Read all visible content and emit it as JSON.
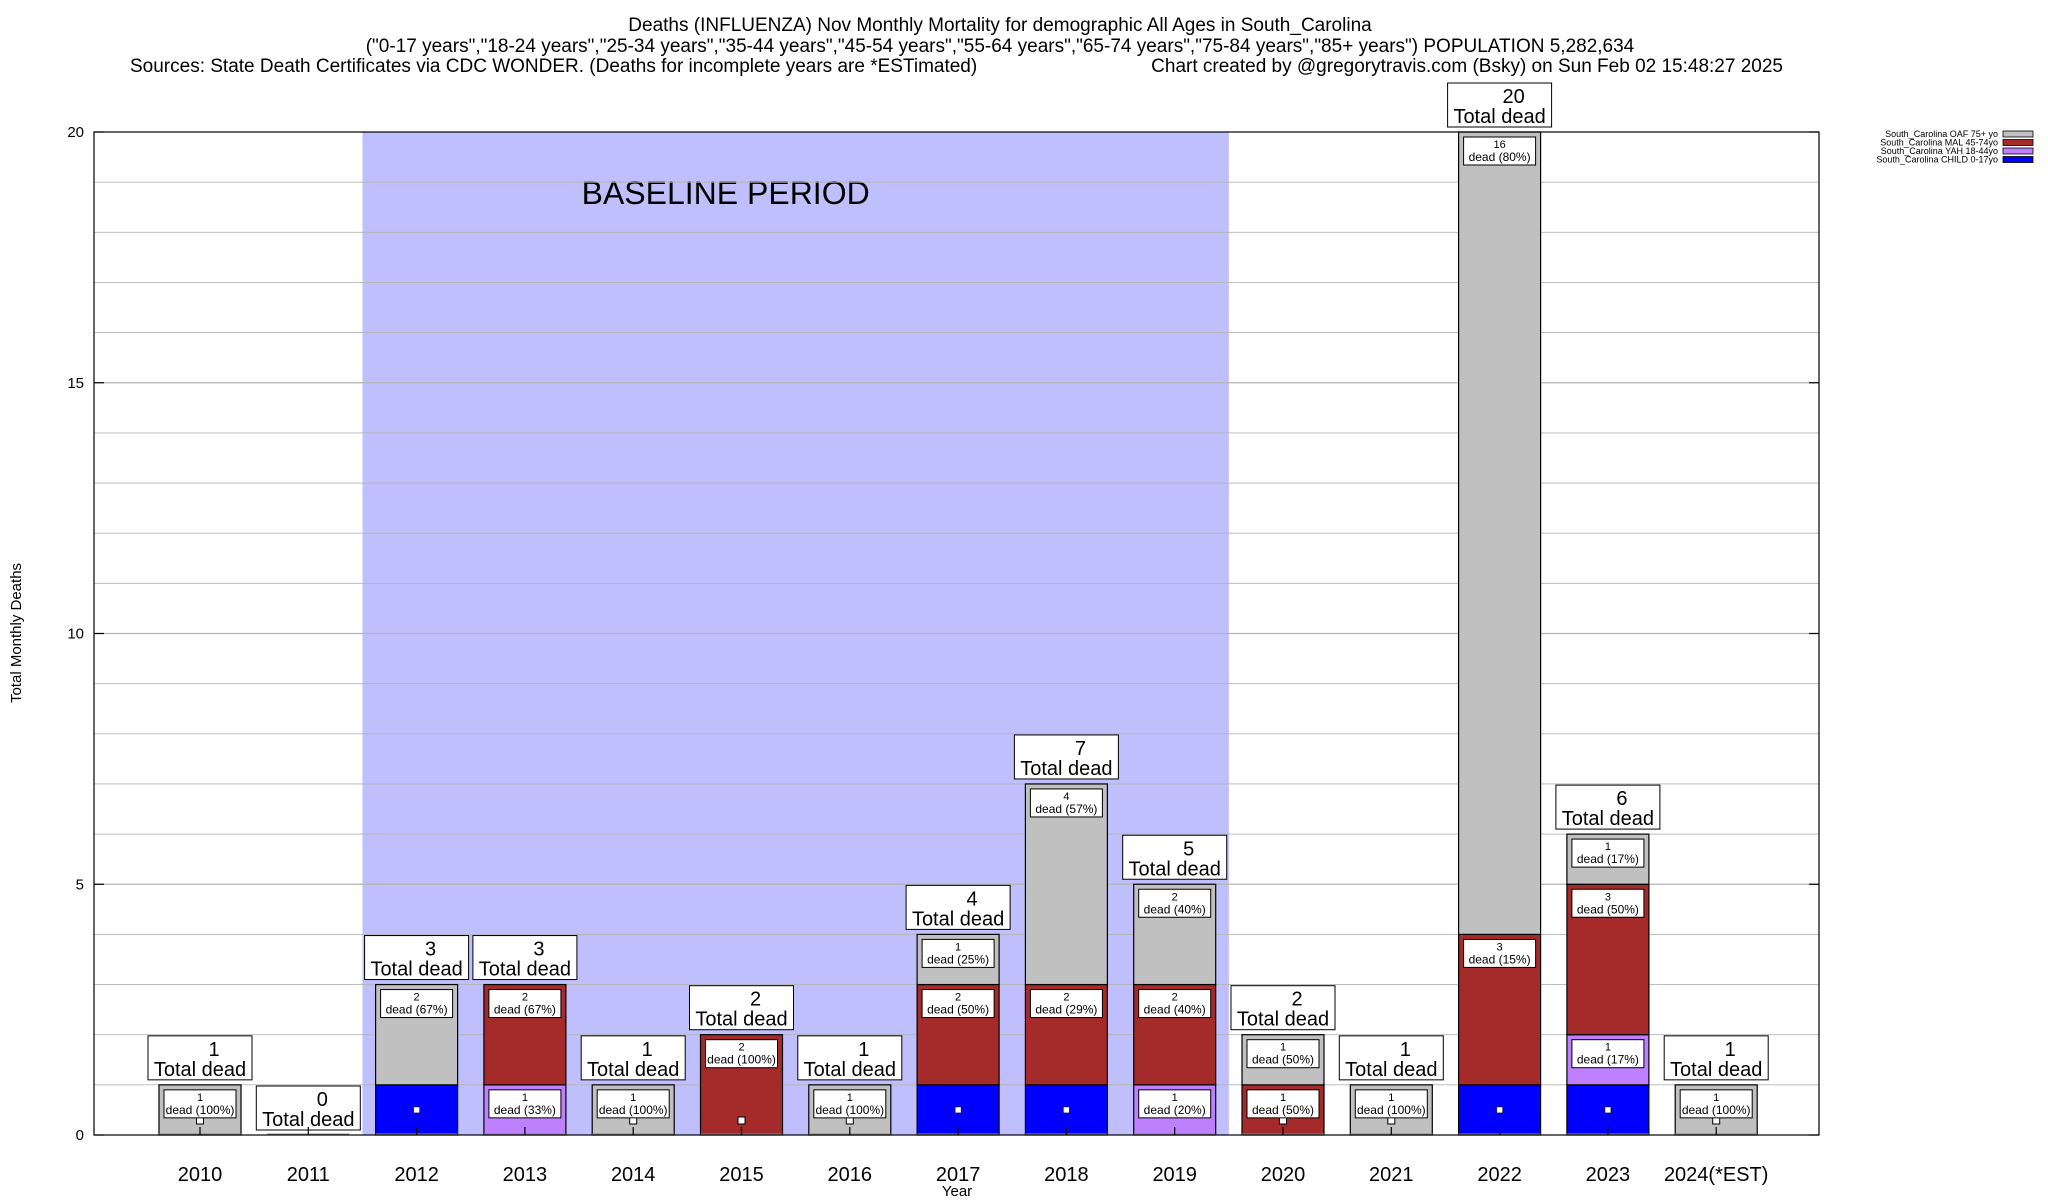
{
  "chart_data": {
    "type": "bar",
    "stacked": true,
    "title_lines": [
      "Deaths (INFLUENZA) Nov Monthly Mortality for demographic All Ages in South_Carolina",
      "(\"0-17 years\",\"18-24 years\",\"25-34 years\",\"35-44 years\",\"45-54 years\",\"55-64 years\",\"65-74 years\",\"75-84 years\",\"85+ years\") POPULATION 5,282,634"
    ],
    "sources_text": "Sources: State Death Certificates via CDC WONDER. (Deaths for incomplete years are *ESTimated)",
    "credit_text": "Chart created by @gregorytravis.com (Bsky) on Sun Feb 02 15:48:27 2025",
    "xlabel": "Year",
    "ylabel": "Total Monthly Deaths",
    "ylim": [
      0,
      20
    ],
    "y_ticks": [
      0,
      5,
      10,
      15,
      20
    ],
    "grid": true,
    "categories": [
      "2010",
      "2011",
      "2012",
      "2013",
      "2014",
      "2015",
      "2016",
      "2017",
      "2018",
      "2019",
      "2020",
      "2021",
      "2022",
      "2023",
      "2024(*EST)"
    ],
    "baseline_period": {
      "label": "BASELINE PERIOD",
      "from": "2012",
      "to": "2019",
      "color": "#bfbffd"
    },
    "total_label": "Total dead",
    "legend_position": "top-right",
    "series": [
      {
        "name": "South_Carolina CHILD 0-17yo",
        "color": "#0000ff",
        "values": [
          0,
          0,
          1,
          0,
          0,
          0,
          0,
          1,
          1,
          0,
          0,
          0,
          1,
          1,
          0
        ]
      },
      {
        "name": "South_Carolina YAH 18-44yo",
        "color": "#bf80ff",
        "values": [
          0,
          0,
          0,
          1,
          0,
          0,
          0,
          0,
          0,
          1,
          0,
          0,
          0,
          1,
          0
        ]
      },
      {
        "name": "South_Carolina MAL 45-74yo",
        "color": "#a52a2a",
        "values": [
          0,
          0,
          0,
          2,
          0,
          2,
          0,
          2,
          2,
          2,
          1,
          0,
          3,
          3,
          0
        ]
      },
      {
        "name": "South_Carolina OAF 75+ yo",
        "color": "#c0c0c0",
        "values": [
          1,
          0,
          2,
          0,
          1,
          0,
          1,
          1,
          4,
          2,
          1,
          1,
          16,
          1,
          1
        ]
      }
    ],
    "totals": [
      1,
      0,
      3,
      3,
      1,
      2,
      1,
      4,
      7,
      5,
      2,
      1,
      20,
      6,
      1
    ],
    "segment_labels": [
      [
        {
          "series": 3,
          "count": "1",
          "text": "dead (100%)"
        }
      ],
      [],
      [
        {
          "series": 3,
          "count": "2",
          "text": "dead (67%)"
        }
      ],
      [
        {
          "series": 1,
          "count": "1",
          "text": "dead (33%)"
        },
        {
          "series": 2,
          "count": "2",
          "text": "dead (67%)"
        }
      ],
      [
        {
          "series": 3,
          "count": "1",
          "text": "dead (100%)"
        }
      ],
      [
        {
          "series": 2,
          "count": "2",
          "text": "dead (100%)"
        }
      ],
      [
        {
          "series": 3,
          "count": "1",
          "text": "dead (100%)"
        }
      ],
      [
        {
          "series": 2,
          "count": "2",
          "text": "dead (50%)"
        },
        {
          "series": 3,
          "count": "1",
          "text": "dead (25%)"
        }
      ],
      [
        {
          "series": 2,
          "count": "2",
          "text": "dead (29%)"
        },
        {
          "series": 3,
          "count": "4",
          "text": "dead (57%)"
        }
      ],
      [
        {
          "series": 1,
          "count": "1",
          "text": "dead (20%)"
        },
        {
          "series": 2,
          "count": "2",
          "text": "dead (40%)"
        },
        {
          "series": 3,
          "count": "2",
          "text": "dead (40%)"
        }
      ],
      [
        {
          "series": 2,
          "count": "1",
          "text": "dead (50%)"
        },
        {
          "series": 3,
          "count": "1",
          "text": "dead (50%)"
        }
      ],
      [
        {
          "series": 3,
          "count": "1",
          "text": "dead (100%)"
        }
      ],
      [
        {
          "series": 2,
          "count": "3",
          "text": "dead (15%)"
        },
        {
          "series": 3,
          "count": "16",
          "text": "dead (80%)"
        }
      ],
      [
        {
          "series": 1,
          "count": "1",
          "text": "dead (17%)"
        },
        {
          "series": 2,
          "count": "3",
          "text": "dead (50%)"
        },
        {
          "series": 3,
          "count": "1",
          "text": "dead (17%)"
        }
      ],
      [
        {
          "series": 3,
          "count": "1",
          "text": "dead (100%)"
        }
      ]
    ]
  }
}
